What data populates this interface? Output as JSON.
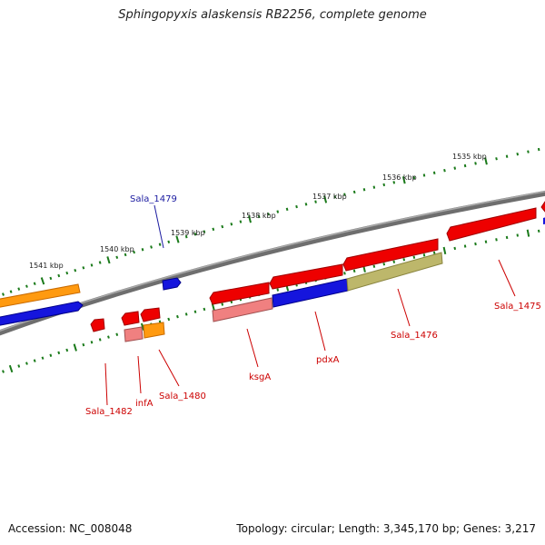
{
  "title": "Sphingopyxis alaskensis RB2256, complete genome",
  "footer": {
    "accession": "Accession: NC_008048",
    "summary": "Topology: circular; Length: 3,345,170 bp; Genes: 3,217"
  },
  "scale_labels": [
    "1541 kbp",
    "1540 kbp",
    "1539 kbp",
    "1538 kbp",
    "1537 kbp",
    "1536 kbp",
    "1535 kbp"
  ],
  "gene_labels": [
    {
      "text": "Sala_1479",
      "color": "#1a1aa0"
    },
    {
      "text": "Sala_1482",
      "color": "#cc0000"
    },
    {
      "text": "infA",
      "color": "#cc0000"
    },
    {
      "text": "Sala_1480",
      "color": "#cc0000"
    },
    {
      "text": "ksgA",
      "color": "#cc0000"
    },
    {
      "text": "pdxA",
      "color": "#cc0000"
    },
    {
      "text": "Sala_1476",
      "color": "#cc0000"
    },
    {
      "text": "Sala_1475",
      "color": "#cc0000"
    }
  ],
  "colors": {
    "backbone": "#808080",
    "forward_gene": "#ee0000",
    "reverse_gene": "#1515dd",
    "orange_feature": "#ff9a10",
    "pink_feature": "#f08080",
    "olive_feature": "#bdb76b",
    "tick": "#1a7a1a"
  }
}
